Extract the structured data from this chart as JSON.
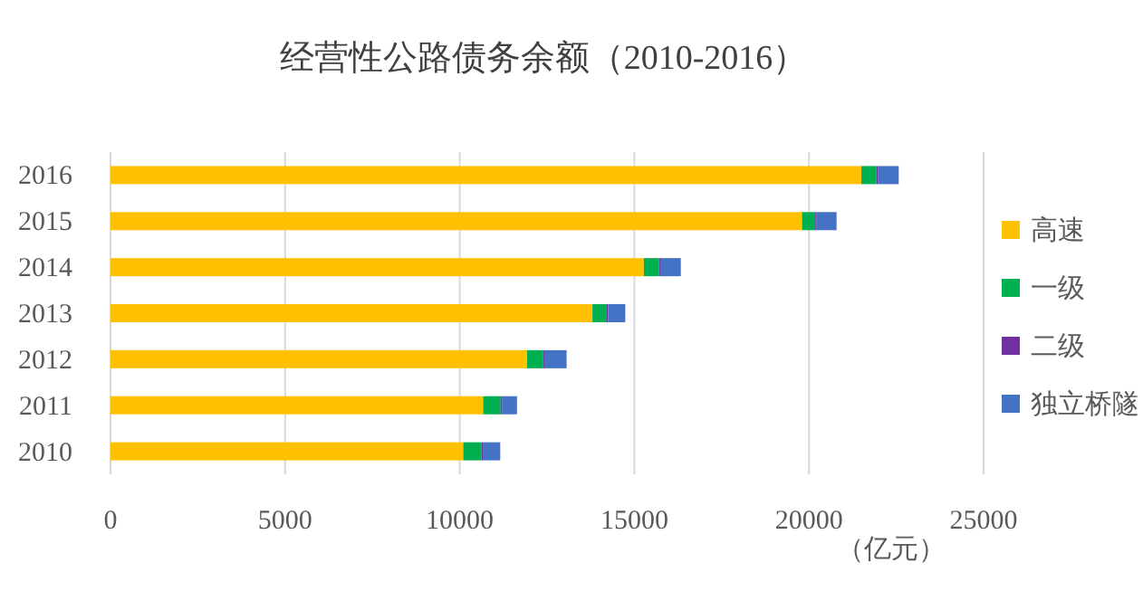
{
  "chart_data": {
    "type": "bar",
    "orientation": "horizontal",
    "stacked": true,
    "title": "经营性公路债务余额（2010-2016）",
    "xlabel": "（亿元）",
    "categories": [
      "2016",
      "2015",
      "2014",
      "2013",
      "2012",
      "2011",
      "2010"
    ],
    "series": [
      {
        "name": "高速",
        "color": "#ffc000",
        "values": [
          21500,
          19800,
          15270,
          13800,
          11930,
          10670,
          10100
        ]
      },
      {
        "name": "一级",
        "color": "#00b050",
        "values": [
          430,
          380,
          430,
          410,
          450,
          500,
          520
        ]
      },
      {
        "name": "二级",
        "color": "#7030a0",
        "values": [
          40,
          40,
          40,
          40,
          40,
          40,
          40
        ]
      },
      {
        "name": "独立桥隧",
        "color": "#4472c4",
        "values": [
          600,
          570,
          590,
          490,
          640,
          430,
          500
        ]
      }
    ],
    "xlim": [
      0,
      25000
    ],
    "xticks": [
      0,
      5000,
      10000,
      15000,
      20000,
      25000
    ],
    "grid": "x",
    "legend": "right"
  }
}
